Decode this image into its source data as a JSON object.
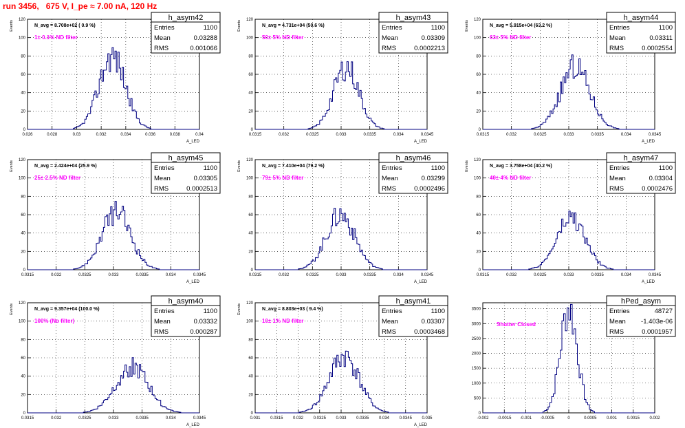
{
  "header": {
    "title": "run 3456,   675 V, I_pe ≈ 7.00 nA, 120 Hz"
  },
  "colors": {
    "title": "#ff0000",
    "histogram_line": "#000080",
    "annotation": "#ff00ff",
    "frame": "#000000"
  },
  "chart_data": [
    {
      "type": "bar",
      "name": "h_asym42",
      "nav_text": "N_avg = 8.708e+02 ( 0.9 %)",
      "filter_text": "1± 0.1% ND filter",
      "stats": {
        "entries_label": "Entries",
        "entries": "1100",
        "mean_label": "Mean",
        "mean": "0.03288",
        "rms_label": "RMS",
        "rms": "0.001066"
      },
      "ylabel": "Events",
      "xlabel": "A_LED",
      "xlim": [
        0.026,
        0.04
      ],
      "ylim": [
        0,
        120
      ],
      "xticks": [
        "0.026",
        "0.028",
        "0.03",
        "0.032",
        "0.034",
        "0.036",
        "0.038",
        "0.04"
      ],
      "yticks": [
        "0",
        "20",
        "40",
        "60",
        "80",
        "100",
        "120"
      ],
      "dist": {
        "peak": 80,
        "center": 0.0329,
        "sigma": 0.00107,
        "bins": 120,
        "seed": 42
      }
    },
    {
      "type": "bar",
      "name": "h_asym43",
      "nav_text": "N_avg = 4.731e+04 (50.6 %)",
      "filter_text": "50± 5% ND filter",
      "stats": {
        "entries_label": "Entries",
        "entries": "1100",
        "mean_label": "Mean",
        "mean": "0.03309",
        "rms_label": "RMS",
        "rms": "0.0002213"
      },
      "ylabel": "Events",
      "xlabel": "A_LED",
      "xlim": [
        0.0315,
        0.0345
      ],
      "ylim": [
        0,
        120
      ],
      "xticks": [
        "0.0315",
        "0.032",
        "0.0325",
        "0.033",
        "0.0335",
        "0.034",
        "0.0345"
      ],
      "yticks": [
        "0",
        "20",
        "40",
        "60",
        "80",
        "100",
        "120"
      ],
      "dist": {
        "peak": 68,
        "center": 0.03309,
        "sigma": 0.00022,
        "bins": 120,
        "seed": 43
      }
    },
    {
      "type": "bar",
      "name": "h_asym44",
      "nav_text": "N_avg = 5.915e+04 (63.2 %)",
      "filter_text": "63± 5% ND filter",
      "stats": {
        "entries_label": "Entries",
        "entries": "1100",
        "mean_label": "Mean",
        "mean": "0.03311",
        "rms_label": "RMS",
        "rms": "0.0002554"
      },
      "ylabel": "Events",
      "xlabel": "A_LED",
      "xlim": [
        0.0315,
        0.0345
      ],
      "ylim": [
        0,
        120
      ],
      "xticks": [
        "0.0315",
        "0.032",
        "0.0325",
        "0.033",
        "0.0335",
        "0.034",
        "0.0345"
      ],
      "yticks": [
        "0",
        "20",
        "40",
        "60",
        "80",
        "100",
        "120"
      ],
      "dist": {
        "peak": 68,
        "center": 0.03311,
        "sigma": 0.000255,
        "bins": 120,
        "seed": 44
      }
    },
    {
      "type": "bar",
      "name": "h_asym45",
      "nav_text": "N_avg = 2.424e+04 (25.9 %)",
      "filter_text": "25± 2.5% ND filter",
      "stats": {
        "entries_label": "Entries",
        "entries": "1100",
        "mean_label": "Mean",
        "mean": "0.03305",
        "rms_label": "RMS",
        "rms": "0.0002513"
      },
      "ylabel": "Events",
      "xlabel": "A_LED",
      "xlim": [
        0.0315,
        0.0345
      ],
      "ylim": [
        0,
        120
      ],
      "xticks": [
        "0.0315",
        "0.032",
        "0.0325",
        "0.033",
        "0.0335",
        "0.034",
        "0.0345"
      ],
      "yticks": [
        "0",
        "20",
        "40",
        "60",
        "80",
        "100",
        "120"
      ],
      "dist": {
        "peak": 63,
        "center": 0.03305,
        "sigma": 0.00025,
        "bins": 120,
        "seed": 45
      }
    },
    {
      "type": "bar",
      "name": "h_asym46",
      "nav_text": "N_avg = 7.410e+04 (79.2 %)",
      "filter_text": "79± 5% ND filter",
      "stats": {
        "entries_label": "Entries",
        "entries": "1100",
        "mean_label": "Mean",
        "mean": "0.03299",
        "rms_label": "RMS",
        "rms": "0.0002496"
      },
      "ylabel": "Events",
      "xlabel": "A_LED",
      "xlim": [
        0.0315,
        0.0345
      ],
      "ylim": [
        0,
        120
      ],
      "xticks": [
        "0.0315",
        "0.032",
        "0.0325",
        "0.033",
        "0.0335",
        "0.034",
        "0.0345"
      ],
      "yticks": [
        "0",
        "20",
        "40",
        "60",
        "80",
        "100",
        "120"
      ],
      "dist": {
        "peak": 60,
        "center": 0.03299,
        "sigma": 0.00025,
        "bins": 120,
        "seed": 46
      }
    },
    {
      "type": "bar",
      "name": "h_asym47",
      "nav_text": "N_avg = 3.758e+04 (40.2 %)",
      "filter_text": "40± 4% ND filter",
      "stats": {
        "entries_label": "Entries",
        "entries": "1100",
        "mean_label": "Mean",
        "mean": "0.03304",
        "rms_label": "RMS",
        "rms": "0.0002476"
      },
      "ylabel": "Events",
      "xlabel": "A_LED",
      "xlim": [
        0.0315,
        0.0345
      ],
      "ylim": [
        0,
        120
      ],
      "xticks": [
        "0.0315",
        "0.032",
        "0.0325",
        "0.033",
        "0.0335",
        "0.034",
        "0.0345"
      ],
      "yticks": [
        "0",
        "20",
        "40",
        "60",
        "80",
        "100",
        "120"
      ],
      "dist": {
        "peak": 56,
        "center": 0.03304,
        "sigma": 0.000248,
        "bins": 120,
        "seed": 47
      }
    },
    {
      "type": "bar",
      "name": "h_asym40",
      "nav_text": "N_avg = 9.357e+04 (100.0 %)",
      "filter_text": "100% (No filter)",
      "stats": {
        "entries_label": "Entries",
        "entries": "1100",
        "mean_label": "Mean",
        "mean": "0.03332",
        "rms_label": "RMS",
        "rms": "0.000287"
      },
      "ylabel": "Events",
      "xlabel": "A_LED",
      "xlim": [
        0.0315,
        0.0345
      ],
      "ylim": [
        0,
        120
      ],
      "xticks": [
        "0.0315",
        "0.032",
        "0.0325",
        "0.033",
        "0.0335",
        "0.034",
        "0.0345"
      ],
      "yticks": [
        "0",
        "20",
        "40",
        "60",
        "80",
        "100",
        "120"
      ],
      "dist": {
        "peak": 50,
        "center": 0.03332,
        "sigma": 0.000287,
        "bins": 120,
        "seed": 40
      }
    },
    {
      "type": "bar",
      "name": "h_asym41",
      "nav_text": "N_avg = 8.803e+03 ( 9.4 %)",
      "filter_text": "10± 1% ND filter",
      "stats": {
        "entries_label": "Entries",
        "entries": "1100",
        "mean_label": "Mean",
        "mean": "0.03307",
        "rms_label": "RMS",
        "rms": "0.0003468"
      },
      "ylabel": "Events",
      "xlabel": "A_LED",
      "xlim": [
        0.031,
        0.035
      ],
      "ylim": [
        0,
        120
      ],
      "xticks": [
        "0.031",
        "0.0315",
        "0.032",
        "0.0325",
        "0.033",
        "0.0335",
        "0.034",
        "0.0345",
        "0.035"
      ],
      "yticks": [
        "0",
        "20",
        "40",
        "60",
        "80",
        "100",
        "120"
      ],
      "dist": {
        "peak": 62,
        "center": 0.03307,
        "sigma": 0.000347,
        "bins": 120,
        "seed": 41
      }
    },
    {
      "type": "bar",
      "name": "hPed_asym",
      "nav_text": "",
      "filter_text": "Shutter Closed",
      "stats": {
        "entries_label": "Entries",
        "entries": "48727",
        "mean_label": "Mean",
        "mean": "-1.403e-06",
        "rms_label": "RMS",
        "rms": "0.0001957"
      },
      "ylabel": "",
      "xlabel": "",
      "xlim": [
        -0.002,
        0.002
      ],
      "ylim": [
        0,
        3700
      ],
      "xticks": [
        "-0.002",
        "-0.0015",
        "-0.001",
        "-0.0005",
        "0",
        "0.0005",
        "0.001",
        "0.0015",
        "0.002"
      ],
      "yticks": [
        "0",
        "500",
        "1000",
        "1500",
        "2000",
        "2500",
        "3000",
        "3500"
      ],
      "dist": {
        "peak": 3550,
        "center": 0.0,
        "sigma": 0.000196,
        "bins": 100,
        "seed": 7
      }
    }
  ]
}
